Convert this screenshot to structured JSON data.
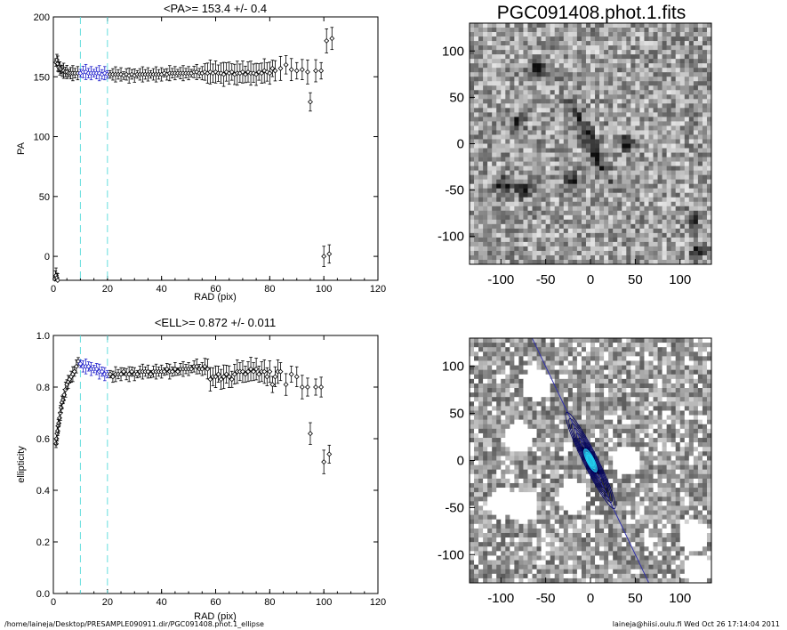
{
  "footer": {
    "path": "/home/laineja/Desktop/PRESAMPLE090911.dir/PGC091408.phot.1_ellipse",
    "stamp": "laineja@hiisi.oulu.fi  Wed Oct 26 17:14:04 2011"
  },
  "chart_data": [
    {
      "type": "scatter",
      "title": "<PA>= 153.4 +/-   0.4",
      "xlabel": "RAD (pix)",
      "ylabel": "PA",
      "xlim": [
        0,
        120
      ],
      "ylim": [
        -20,
        200
      ],
      "xticks": [
        0,
        20,
        40,
        60,
        80,
        100,
        120
      ],
      "yticks": [
        0,
        50,
        100,
        150,
        200
      ],
      "vlines": [
        10,
        20
      ],
      "series": [
        {
          "color": "#000000",
          "points": [
            [
              0.6,
              -19
            ],
            [
              0.8,
              -17
            ],
            [
              1.0,
              -16
            ],
            [
              1.3,
              -18
            ],
            [
              1.6,
              -20
            ]
          ]
        },
        {
          "color": "#000000",
          "points": [
            [
              1.0,
              162
            ],
            [
              1.3,
              164
            ],
            [
              1.6,
              161
            ],
            [
              2,
              158
            ],
            [
              2.4,
              157
            ],
            [
              2.8,
              156
            ],
            [
              3.3,
              155
            ],
            [
              3.8,
              155
            ],
            [
              4.4,
              154
            ],
            [
              5,
              154
            ],
            [
              5.7,
              153
            ],
            [
              6.4,
              153
            ],
            [
              7.2,
              153
            ],
            [
              8,
              153
            ],
            [
              9,
              153
            ]
          ]
        },
        {
          "color": "#2222cc",
          "points": [
            [
              10,
              153
            ],
            [
              11,
              154
            ],
            [
              12,
              154
            ],
            [
              13,
              153
            ],
            [
              14,
              153
            ],
            [
              15,
              153
            ],
            [
              16,
              153
            ],
            [
              17,
              153
            ],
            [
              18,
              152
            ],
            [
              19,
              153
            ],
            [
              20,
              152
            ]
          ]
        },
        {
          "color": "#000000",
          "points": [
            [
              21,
              152
            ],
            [
              22,
              152
            ],
            [
              23,
              152
            ],
            [
              24,
              152
            ],
            [
              25,
              152
            ],
            [
              26,
              151
            ],
            [
              27,
              152
            ],
            [
              28,
              151
            ],
            [
              29,
              152
            ],
            [
              30,
              151
            ],
            [
              31,
              152
            ],
            [
              32,
              152
            ],
            [
              33,
              152
            ],
            [
              34,
              152
            ],
            [
              35,
              152
            ],
            [
              36,
              152
            ],
            [
              37,
              152
            ],
            [
              38,
              152
            ],
            [
              39,
              152
            ],
            [
              40,
              152
            ],
            [
              41,
              153
            ],
            [
              42,
              152
            ],
            [
              43,
              153
            ],
            [
              44,
              153
            ],
            [
              45,
              153
            ],
            [
              46,
              153
            ],
            [
              47,
              153
            ],
            [
              48,
              153
            ],
            [
              49,
              153
            ],
            [
              50,
              153
            ],
            [
              51,
              153
            ],
            [
              52,
              154
            ],
            [
              53,
              154
            ],
            [
              54,
              153
            ],
            [
              55,
              153
            ],
            [
              56,
              154
            ],
            [
              57,
              153
            ],
            [
              58,
              154
            ],
            [
              59,
              153
            ],
            [
              60,
              154
            ],
            [
              61,
              153
            ],
            [
              62,
              153
            ],
            [
              63,
              152
            ],
            [
              64,
              154
            ],
            [
              65,
              153
            ],
            [
              66,
              154
            ],
            [
              67,
              152
            ],
            [
              68,
              153
            ],
            [
              69,
              153
            ],
            [
              70,
              154
            ],
            [
              71,
              152
            ],
            [
              72,
              154
            ],
            [
              73,
              153
            ],
            [
              74,
              153
            ],
            [
              75,
              152
            ],
            [
              76,
              154
            ],
            [
              77,
              153
            ],
            [
              78,
              155
            ],
            [
              79,
              154
            ],
            [
              80,
              153
            ],
            [
              81,
              157
            ],
            [
              82,
              155
            ],
            [
              84,
              157
            ],
            [
              86,
              160
            ],
            [
              88,
              156
            ],
            [
              90,
              155
            ],
            [
              92,
              156
            ],
            [
              94,
              154
            ],
            [
              95,
              129
            ],
            [
              97,
              155
            ],
            [
              99,
              155
            ],
            [
              100,
              0
            ],
            [
              101,
              180
            ],
            [
              102,
              2
            ],
            [
              103,
              182
            ]
          ]
        }
      ]
    },
    {
      "type": "scatter",
      "title": "<ELL>= 0.872 +/-  0.011",
      "xlabel": "RAD (pix)",
      "ylabel": "ellipticity",
      "xlim": [
        0,
        120
      ],
      "ylim": [
        0.0,
        1.0
      ],
      "xticks": [
        0,
        20,
        40,
        60,
        80,
        100,
        120
      ],
      "yticks": [
        0.0,
        0.2,
        0.4,
        0.6,
        0.8,
        1.0
      ],
      "yticklabels": [
        "0.0",
        "0.2",
        "0.4",
        "0.6",
        "0.8",
        "1.0"
      ],
      "vlines": [
        10,
        20
      ],
      "series": [
        {
          "color": "#000000",
          "points": [
            [
              1.0,
              0.58
            ],
            [
              1.2,
              0.6
            ],
            [
              1.4,
              0.62
            ],
            [
              1.6,
              0.63
            ],
            [
              1.8,
              0.65
            ],
            [
              2.0,
              0.66
            ],
            [
              2.3,
              0.68
            ],
            [
              2.6,
              0.7
            ],
            [
              2.9,
              0.72
            ],
            [
              3.2,
              0.74
            ],
            [
              3.6,
              0.75
            ],
            [
              4.0,
              0.77
            ],
            [
              4.5,
              0.79
            ],
            [
              5.0,
              0.81
            ],
            [
              5.5,
              0.82
            ],
            [
              6.0,
              0.83
            ],
            [
              6.6,
              0.84
            ],
            [
              7.2,
              0.85
            ],
            [
              7.8,
              0.86
            ],
            [
              8.5,
              0.88
            ],
            [
              9.2,
              0.9
            ]
          ]
        },
        {
          "color": "#2222cc",
          "points": [
            [
              10,
              0.89
            ],
            [
              11,
              0.88
            ],
            [
              12,
              0.88
            ],
            [
              13,
              0.88
            ],
            [
              14,
              0.87
            ],
            [
              15,
              0.87
            ],
            [
              16,
              0.87
            ],
            [
              17,
              0.86
            ],
            [
              18,
              0.86
            ],
            [
              19,
              0.85
            ],
            [
              20,
              0.85
            ]
          ]
        },
        {
          "color": "#000000",
          "points": [
            [
              21,
              0.85
            ],
            [
              22,
              0.84
            ],
            [
              23,
              0.85
            ],
            [
              24,
              0.85
            ],
            [
              25,
              0.85
            ],
            [
              26,
              0.86
            ],
            [
              27,
              0.85
            ],
            [
              28,
              0.85
            ],
            [
              29,
              0.86
            ],
            [
              30,
              0.85
            ],
            [
              31,
              0.85
            ],
            [
              32,
              0.86
            ],
            [
              33,
              0.86
            ],
            [
              34,
              0.86
            ],
            [
              35,
              0.86
            ],
            [
              36,
              0.85
            ],
            [
              37,
              0.86
            ],
            [
              38,
              0.86
            ],
            [
              39,
              0.86
            ],
            [
              40,
              0.86
            ],
            [
              41,
              0.86
            ],
            [
              42,
              0.87
            ],
            [
              43,
              0.86
            ],
            [
              44,
              0.86
            ],
            [
              45,
              0.87
            ],
            [
              46,
              0.86
            ],
            [
              47,
              0.87
            ],
            [
              48,
              0.87
            ],
            [
              49,
              0.87
            ],
            [
              50,
              0.87
            ],
            [
              51,
              0.87
            ],
            [
              52,
              0.88
            ],
            [
              53,
              0.88
            ],
            [
              54,
              0.87
            ],
            [
              55,
              0.87
            ],
            [
              56,
              0.88
            ],
            [
              57,
              0.87
            ],
            [
              58,
              0.83
            ],
            [
              59,
              0.84
            ],
            [
              60,
              0.84
            ],
            [
              61,
              0.85
            ],
            [
              62,
              0.83
            ],
            [
              63,
              0.84
            ],
            [
              64,
              0.85
            ],
            [
              65,
              0.84
            ],
            [
              66,
              0.83
            ],
            [
              67,
              0.85
            ],
            [
              68,
              0.86
            ],
            [
              69,
              0.86
            ],
            [
              70,
              0.86
            ],
            [
              71,
              0.85
            ],
            [
              72,
              0.86
            ],
            [
              73,
              0.87
            ],
            [
              74,
              0.86
            ],
            [
              75,
              0.87
            ],
            [
              76,
              0.85
            ],
            [
              77,
              0.86
            ],
            [
              78,
              0.86
            ],
            [
              79,
              0.84
            ],
            [
              80,
              0.86
            ],
            [
              81,
              0.81
            ],
            [
              82,
              0.84
            ],
            [
              83,
              0.86
            ],
            [
              84,
              0.86
            ],
            [
              86,
              0.81
            ],
            [
              88,
              0.85
            ],
            [
              90,
              0.84
            ],
            [
              92,
              0.8
            ],
            [
              94,
              0.8
            ],
            [
              95,
              0.62
            ],
            [
              97,
              0.8
            ],
            [
              99,
              0.8
            ],
            [
              100,
              0.51
            ],
            [
              102,
              0.54
            ]
          ]
        }
      ]
    },
    {
      "type": "heatmap",
      "title": "PGC091408.phot.1.fits",
      "xlim": [
        -135,
        135
      ],
      "ylim": [
        -130,
        130
      ],
      "xticks": [
        -100,
        -50,
        0,
        50,
        100
      ],
      "yticks": [
        -100,
        -50,
        0,
        50,
        100
      ],
      "colormap": "grayscale",
      "galaxy": {
        "pa_deg": 153.4,
        "ellipticity": 0.872,
        "center": [
          0,
          0
        ]
      }
    },
    {
      "type": "heatmap",
      "title": "",
      "xlim": [
        -135,
        135
      ],
      "ylim": [
        -130,
        130
      ],
      "xticks": [
        -100,
        -50,
        0,
        50,
        100
      ],
      "yticks": [
        -100,
        -50,
        0,
        50,
        100
      ],
      "colormap": "grayscale-masked",
      "overlay": {
        "major_axis_color": "#3333aa",
        "contour_color": "#000066",
        "core_color": "#22d0f0",
        "pa_deg": 153.4
      }
    }
  ]
}
